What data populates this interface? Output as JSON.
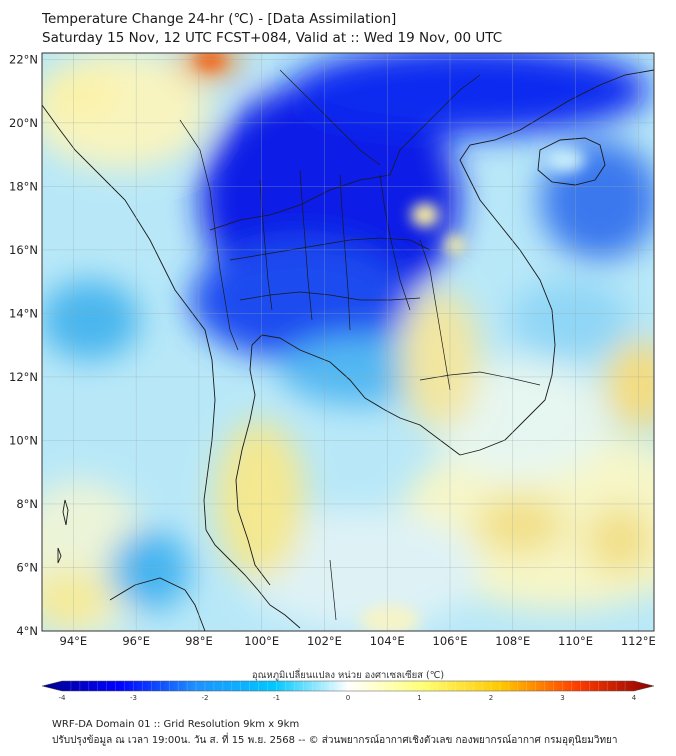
{
  "title": {
    "line1": "Temperature Change 24-hr (℃) - [Data Assimilation]",
    "line2": "Saturday 15 Nov, 12 UTC FCST+084, Valid at :: Wed 19 Nov, 00 UTC"
  },
  "map": {
    "lon_range": [
      93,
      112.5
    ],
    "lat_range": [
      4,
      22.2
    ],
    "lat_labels": [
      "22°N",
      "20°N",
      "18°N",
      "16°N",
      "14°N",
      "12°N",
      "10°N",
      "8°N",
      "6°N",
      "4°N"
    ],
    "lon_labels": [
      "94°E",
      "96°E",
      "98°E",
      "100°E",
      "102°E",
      "104°E",
      "106°E",
      "108°E",
      "110°E",
      "112°E"
    ],
    "gridlines": true
  },
  "colorbar": {
    "label": "อุณหภูมิเปลี่ยนแปลง หน่วย องศาเซลเซียส (℃)",
    "min": -4,
    "max": 4,
    "ticks": [
      "-4",
      "-3",
      "-2",
      "-1",
      "0",
      "1",
      "2",
      "3",
      "4"
    ],
    "colors": [
      "#00008b",
      "#0000ff",
      "#1e90ff",
      "#00c8ff",
      "#ffffff",
      "#ffff78",
      "#ffc800",
      "#ff3c00",
      "#8b0000"
    ]
  },
  "footer": {
    "line1": "WRF-DA Domain 01 :: Grid Resolution 9km x 9km",
    "line2": "ปรับปรุงข้อมูล ณ เวลา 19:00น. วัน ส. ที่ 15 พ.ย. 2568 -- © ส่วนพยากรณ์อากาศเชิงตัวเลข กองพยากรณ์อากาศ กรมอุตุนิยมวิทยา"
  }
}
